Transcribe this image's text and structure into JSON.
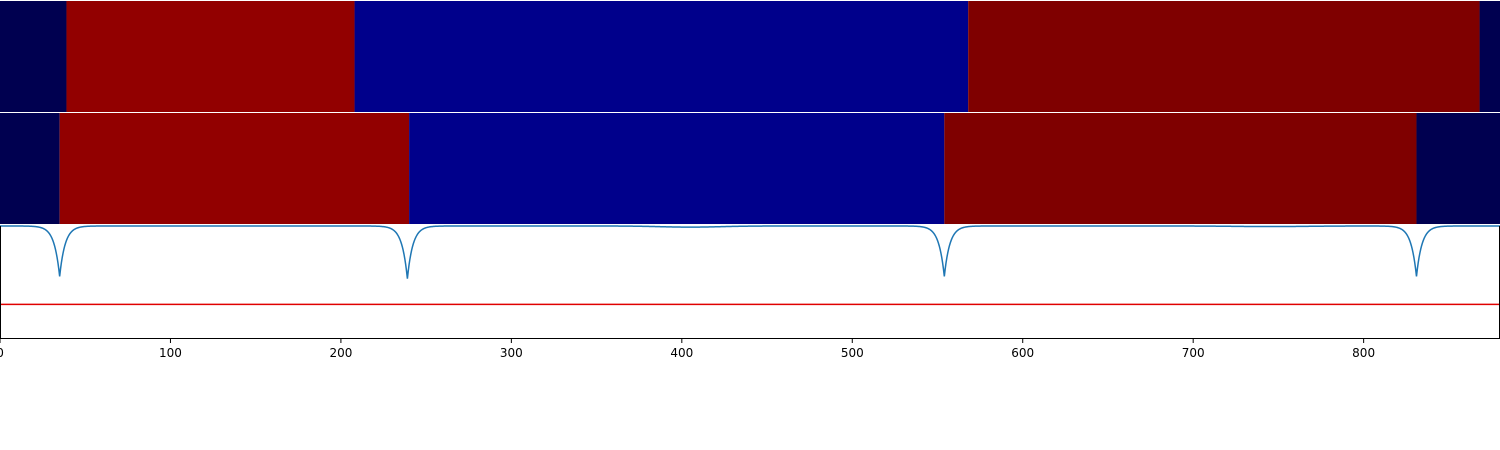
{
  "chart_data": {
    "type": "heatmap",
    "title": "",
    "xlabel": "",
    "ylabel": "",
    "xlim": [
      0,
      880
    ],
    "x_ticks": [
      0,
      100,
      200,
      300,
      400,
      500,
      600,
      700,
      800
    ],
    "x_tick_labels": [
      "0",
      "100",
      "200",
      "300",
      "400",
      "500",
      "600",
      "700",
      "800"
    ],
    "grid": false,
    "colors": {
      "dark_navy": "#000050",
      "red": "#920000",
      "blue": "#00008b",
      "maroon": "#7f0000",
      "curve": "#1f77b4",
      "threshold": "#e00000"
    },
    "rows": [
      {
        "name": "segmentation-row-1",
        "segments": [
          {
            "start": 0,
            "end": 39,
            "class": "dark_navy"
          },
          {
            "start": 39,
            "end": 208,
            "class": "red"
          },
          {
            "start": 208,
            "end": 568,
            "class": "blue"
          },
          {
            "start": 568,
            "end": 868,
            "class": "maroon"
          },
          {
            "start": 868,
            "end": 880,
            "class": "dark_navy"
          }
        ]
      },
      {
        "name": "segmentation-row-2",
        "segments": [
          {
            "start": 0,
            "end": 35,
            "class": "dark_navy"
          },
          {
            "start": 35,
            "end": 240,
            "class": "red"
          },
          {
            "start": 240,
            "end": 554,
            "class": "blue"
          },
          {
            "start": 554,
            "end": 831,
            "class": "maroon"
          },
          {
            "start": 831,
            "end": 880,
            "class": "dark_navy"
          }
        ]
      }
    ],
    "curve": {
      "baseline": 1.0,
      "ylim": [
        0,
        1
      ],
      "dips": [
        {
          "x": 35,
          "min": 0.55
        },
        {
          "x": 239,
          "min": 0.53
        },
        {
          "x": 554,
          "min": 0.55
        },
        {
          "x": 831,
          "min": 0.55
        }
      ],
      "shallow_dips": [
        {
          "x": 405,
          "depth": 0.01,
          "width": 25
        },
        {
          "x": 745,
          "depth": 0.005,
          "width": 30
        }
      ]
    },
    "threshold": 0.3
  }
}
